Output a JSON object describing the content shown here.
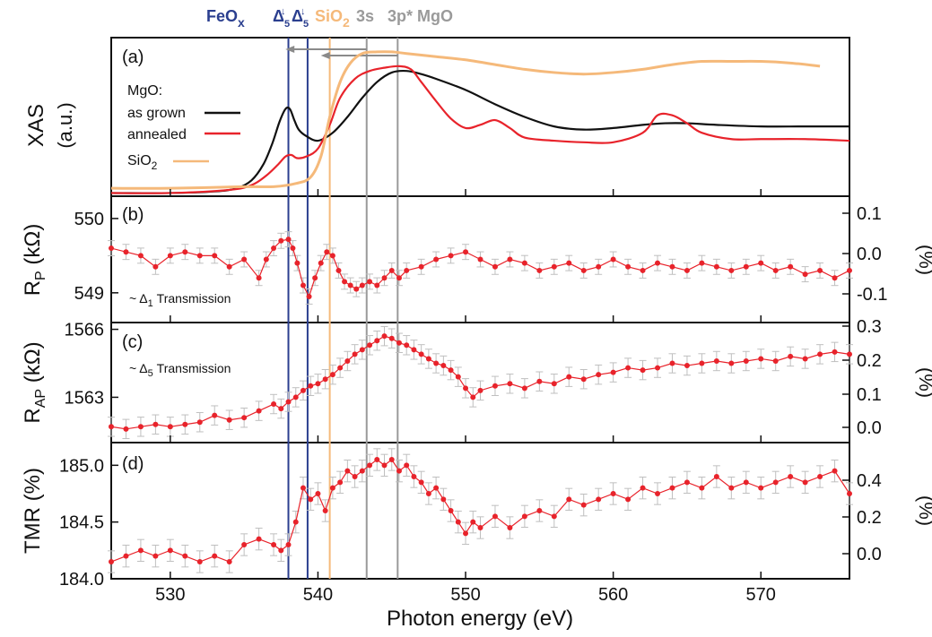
{
  "colors": {
    "as_grown": "#111111",
    "annealed": "#e8232b",
    "sio2": "#f5b97a",
    "feox": "#2b3f8f",
    "mgo_ref": "#9a9a9a",
    "points": "#e8232b",
    "errorbars": "#bfbfbf",
    "arrow": "#8a8a8a"
  },
  "xaxis": {
    "label": "Photon energy (eV)",
    "range": [
      526,
      576
    ],
    "ticks": [
      530,
      540,
      550,
      560,
      570
    ],
    "tick_labels": [
      "530",
      "540",
      "550",
      "560",
      "570"
    ]
  },
  "top_labels": {
    "feox": "FeO",
    "feox_sub": "x",
    "delta_char": "Δ",
    "delta_sub": "5",
    "arrow_char": "↓",
    "sio2": "SiO",
    "sio2_sub": "2",
    "three_s": "3s",
    "three_p": "3p* MgO"
  },
  "reference_lines": [
    {
      "name": "feox-delta5-a",
      "x": 538.0,
      "color": "#2b3f8f"
    },
    {
      "name": "feox-delta5-b",
      "x": 539.3,
      "color": "#2b3f8f"
    },
    {
      "name": "sio2",
      "x": 540.8,
      "color": "#f5b97a"
    },
    {
      "name": "mgo-3s",
      "x": 543.3,
      "color": "#9a9a9a"
    },
    {
      "name": "mgo-3p",
      "x": 545.4,
      "color": "#9a9a9a"
    }
  ],
  "panels": {
    "a": {
      "tag": "(a)",
      "ylabel_main": "XAS",
      "ylabel_unit": "(a.u.)",
      "legend_title": "MgO:",
      "legend_as_grown": "as grown",
      "legend_annealed": "annealed",
      "legend_sio2_main": "SiO",
      "legend_sio2_sub": "2"
    },
    "b": {
      "tag": "(b)",
      "ylabel_main": "R",
      "ylabel_sub": "P",
      "ylabel_unit": " (kΩ)",
      "yticks": [
        "550",
        "549"
      ],
      "right_label": "(%)",
      "right_ticks": [
        "0.1",
        "0.0",
        "-0.1"
      ],
      "annotation_prefix": "~ Δ",
      "annotation_sub": "1",
      "annotation_text": " Transmission"
    },
    "c": {
      "tag": "(c)",
      "ylabel_main": "R",
      "ylabel_sub": "AP",
      "ylabel_unit": " (kΩ)",
      "yticks": [
        "1566",
        "1563"
      ],
      "right_label": "(%)",
      "right_ticks": [
        "0.3",
        "0.2",
        "0.1",
        "0.0"
      ],
      "annotation_prefix": "~ Δ",
      "annotation_sub": "5",
      "annotation_text": " Transmission"
    },
    "d": {
      "tag": "(d)",
      "ylabel": "TMR (%)",
      "yticks": [
        "185.0",
        "184.5",
        "184.0"
      ],
      "right_label": "(%)",
      "right_ticks": [
        "0.4",
        "0.2",
        "0.0"
      ]
    }
  },
  "chart_data": [
    {
      "type": "line",
      "panel": "a",
      "xlabel": "Photon energy (eV)",
      "ylabel": "XAS (a.u.)",
      "xlim": [
        526,
        576
      ],
      "ylim": [
        0,
        1
      ],
      "series": [
        {
          "name": "as grown",
          "color": "#111111",
          "x": [
            526,
            530,
            533,
            534.5,
            535.5,
            536.3,
            536.9,
            537.4,
            537.8,
            538.1,
            538.4,
            538.7,
            539.2,
            540,
            541,
            542,
            543,
            544,
            545,
            546,
            547,
            548,
            550,
            552,
            554,
            556,
            558,
            560,
            562,
            563.5,
            565,
            567,
            570,
            573,
            576
          ],
          "y": [
            0.02,
            0.02,
            0.03,
            0.05,
            0.1,
            0.2,
            0.33,
            0.47,
            0.55,
            0.55,
            0.48,
            0.42,
            0.38,
            0.35,
            0.4,
            0.5,
            0.62,
            0.72,
            0.78,
            0.79,
            0.77,
            0.74,
            0.67,
            0.58,
            0.5,
            0.44,
            0.42,
            0.43,
            0.45,
            0.46,
            0.46,
            0.45,
            0.44,
            0.44,
            0.44
          ]
        },
        {
          "name": "annealed",
          "color": "#e8232b",
          "x": [
            526,
            530,
            534,
            535.5,
            536.5,
            537.3,
            537.8,
            538.2,
            538.6,
            539.2,
            540,
            540.8,
            541.5,
            542.5,
            543.5,
            544.5,
            545.5,
            546.3,
            547,
            548,
            549,
            550,
            551,
            552,
            553,
            554,
            556,
            558,
            560,
            562,
            563,
            564,
            565,
            566,
            568,
            570,
            573,
            576
          ],
          "y": [
            0.02,
            0.02,
            0.04,
            0.07,
            0.13,
            0.2,
            0.25,
            0.26,
            0.24,
            0.25,
            0.3,
            0.45,
            0.62,
            0.74,
            0.79,
            0.81,
            0.82,
            0.8,
            0.72,
            0.6,
            0.49,
            0.43,
            0.45,
            0.48,
            0.43,
            0.37,
            0.35,
            0.34,
            0.34,
            0.4,
            0.51,
            0.51,
            0.46,
            0.4,
            0.36,
            0.36,
            0.36,
            0.35
          ]
        },
        {
          "name": "SiO2",
          "color": "#f5b97a",
          "x": [
            526,
            530,
            535,
            537,
            538.5,
            539.5,
            540.2,
            540.8,
            541.5,
            542.2,
            543,
            544,
            545,
            546,
            548,
            550,
            552,
            554,
            556,
            558,
            560,
            562,
            564,
            566,
            568,
            570,
            572,
            574
          ],
          "y": [
            0.05,
            0.05,
            0.06,
            0.06,
            0.08,
            0.12,
            0.25,
            0.5,
            0.72,
            0.84,
            0.9,
            0.91,
            0.91,
            0.9,
            0.88,
            0.86,
            0.83,
            0.8,
            0.78,
            0.77,
            0.78,
            0.8,
            0.83,
            0.85,
            0.85,
            0.85,
            0.84,
            0.82
          ]
        }
      ]
    },
    {
      "type": "scatter",
      "panel": "b",
      "ylabel": "R_P (kΩ)",
      "ylim": [
        548.6,
        550.3
      ],
      "series": [
        {
          "name": "R_P",
          "x": [
            526,
            527,
            528,
            529,
            530,
            531,
            532,
            533,
            534,
            535,
            536,
            536.5,
            537,
            537.5,
            538,
            538.3,
            538.6,
            539,
            539.4,
            539.8,
            540.2,
            540.6,
            541,
            541.4,
            541.8,
            542.2,
            542.6,
            543,
            543.5,
            544,
            544.5,
            545,
            545.5,
            546,
            547,
            548,
            549,
            550,
            551,
            552,
            553,
            554,
            555,
            556,
            557,
            558,
            559,
            560,
            561,
            562,
            563,
            564,
            565,
            566,
            567,
            568,
            569,
            570,
            571,
            572,
            573,
            574,
            575,
            576
          ],
          "y": [
            549.6,
            549.55,
            549.5,
            549.35,
            549.5,
            549.55,
            549.5,
            549.5,
            549.35,
            549.45,
            549.2,
            549.45,
            549.6,
            549.7,
            549.72,
            549.6,
            549.4,
            549.1,
            548.95,
            549.2,
            549.4,
            549.55,
            549.5,
            549.3,
            549.15,
            549.1,
            549.05,
            549.1,
            549.15,
            549.1,
            549.2,
            549.3,
            549.2,
            549.3,
            549.35,
            549.45,
            549.5,
            549.55,
            549.45,
            549.35,
            549.45,
            549.4,
            549.3,
            549.35,
            549.4,
            549.3,
            549.35,
            549.45,
            549.35,
            549.3,
            549.4,
            549.35,
            549.3,
            549.4,
            549.35,
            549.3,
            549.35,
            549.4,
            549.3,
            549.35,
            549.25,
            549.3,
            549.2,
            549.3
          ]
        }
      ]
    },
    {
      "type": "scatter",
      "panel": "c",
      "ylabel": "R_AP (kΩ)",
      "ylim": [
        1561.0,
        1566.3
      ],
      "series": [
        {
          "name": "R_AP",
          "x": [
            526,
            527,
            528,
            529,
            530,
            531,
            532,
            533,
            534,
            535,
            536,
            537,
            537.5,
            538,
            538.5,
            539,
            539.5,
            540,
            540.5,
            541,
            541.5,
            542,
            542.5,
            543,
            543.5,
            544,
            544.5,
            545,
            545.5,
            546,
            546.5,
            547,
            547.5,
            548,
            548.5,
            549,
            549.5,
            550,
            550.5,
            551,
            552,
            553,
            554,
            555,
            556,
            557,
            558,
            559,
            560,
            561,
            562,
            563,
            564,
            565,
            566,
            567,
            568,
            569,
            570,
            571,
            572,
            573,
            574,
            575,
            576
          ],
          "y": [
            1561.7,
            1561.6,
            1561.7,
            1561.8,
            1561.7,
            1561.8,
            1561.9,
            1562.2,
            1562.0,
            1562.1,
            1562.4,
            1562.7,
            1562.5,
            1562.8,
            1563.0,
            1563.3,
            1563.5,
            1563.6,
            1563.8,
            1564.0,
            1564.3,
            1564.6,
            1564.9,
            1565.1,
            1565.3,
            1565.5,
            1565.7,
            1565.6,
            1565.4,
            1565.3,
            1565.1,
            1564.9,
            1564.7,
            1564.5,
            1564.4,
            1564.2,
            1563.9,
            1563.4,
            1563.0,
            1563.3,
            1563.5,
            1563.6,
            1563.4,
            1563.7,
            1563.6,
            1563.9,
            1563.8,
            1564.0,
            1564.1,
            1564.3,
            1564.2,
            1564.3,
            1564.5,
            1564.4,
            1564.5,
            1564.6,
            1564.5,
            1564.6,
            1564.7,
            1564.6,
            1564.8,
            1564.7,
            1564.9,
            1565.0,
            1564.9
          ]
        }
      ]
    },
    {
      "type": "scatter",
      "panel": "d",
      "ylabel": "TMR (%)",
      "ylim": [
        184.0,
        185.2
      ],
      "series": [
        {
          "name": "TMR",
          "x": [
            526,
            527,
            528,
            529,
            530,
            531,
            532,
            533,
            534,
            535,
            536,
            537,
            537.5,
            538,
            538.5,
            539,
            539.5,
            540,
            540.5,
            541,
            541.5,
            542,
            542.5,
            543,
            543.5,
            544,
            544.5,
            545,
            545.5,
            546,
            546.5,
            547,
            547.5,
            548,
            548.5,
            549,
            549.5,
            550,
            550.5,
            551,
            552,
            553,
            554,
            555,
            556,
            557,
            558,
            559,
            560,
            561,
            562,
            563,
            564,
            565,
            566,
            567,
            568,
            569,
            570,
            571,
            572,
            573,
            574,
            575,
            576
          ],
          "y": [
            184.15,
            184.2,
            184.25,
            184.2,
            184.25,
            184.2,
            184.15,
            184.2,
            184.15,
            184.3,
            184.35,
            184.3,
            184.25,
            184.3,
            184.5,
            184.8,
            184.7,
            184.75,
            184.6,
            184.8,
            184.85,
            184.95,
            184.9,
            184.95,
            185.0,
            185.05,
            185.0,
            185.05,
            184.95,
            185.0,
            184.9,
            184.85,
            184.75,
            184.8,
            184.7,
            184.6,
            184.5,
            184.4,
            184.5,
            184.45,
            184.55,
            184.45,
            184.55,
            184.6,
            184.55,
            184.7,
            184.65,
            184.7,
            184.75,
            184.7,
            184.8,
            184.75,
            184.8,
            184.85,
            184.8,
            184.9,
            184.8,
            184.85,
            184.8,
            184.85,
            184.9,
            184.85,
            184.9,
            184.95,
            184.75
          ]
        }
      ]
    }
  ]
}
